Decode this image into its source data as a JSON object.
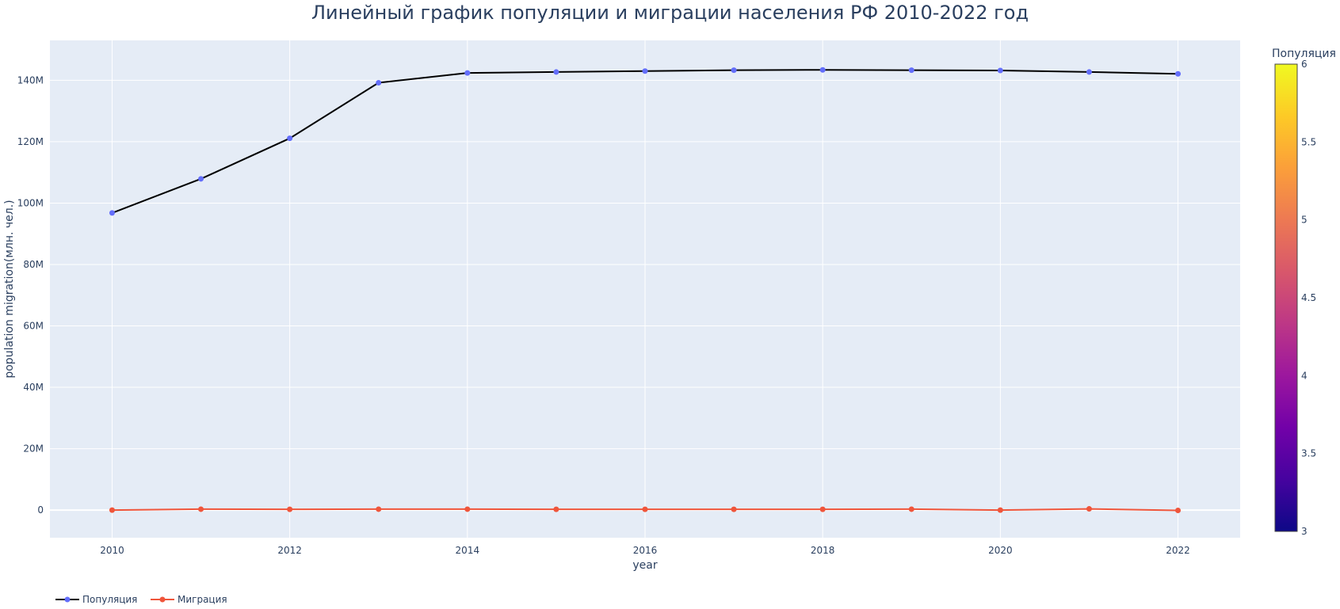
{
  "chart_data": {
    "type": "line",
    "title": "Линейный график популяции и миграции населения РФ 2010-2022 год",
    "xlabel": "year",
    "ylabel": "population migration(млн. чел.)",
    "x": [
      2010,
      2011,
      2012,
      2013,
      2014,
      2015,
      2016,
      2017,
      2018,
      2019,
      2020,
      2021,
      2022
    ],
    "xlim": [
      2009.3,
      2022.7
    ],
    "ylim": [
      -9000000,
      153000000
    ],
    "x_ticks": [
      2010,
      2012,
      2014,
      2016,
      2018,
      2020,
      2022
    ],
    "x_tick_labels": [
      "2010",
      "2012",
      "2014",
      "2016",
      "2018",
      "2020",
      "2022"
    ],
    "y_ticks": [
      0,
      20000000,
      40000000,
      60000000,
      80000000,
      100000000,
      120000000,
      140000000
    ],
    "y_tick_labels": [
      "0",
      "20M",
      "40M",
      "60M",
      "80M",
      "100M",
      "120M",
      "140M"
    ],
    "grid": true,
    "legend_position": "bottom-left",
    "series": [
      {
        "name": "Популяция",
        "line_color": "#000000",
        "marker_color": "#636efa",
        "values": [
          96800000,
          107900000,
          121100000,
          139200000,
          142400000,
          142700000,
          143000000,
          143300000,
          143400000,
          143300000,
          143200000,
          142700000,
          142100000
        ]
      },
      {
        "name": "Миграция",
        "line_color": "#ef553b",
        "marker_color": "#ef553b",
        "values": [
          0,
          300000,
          250000,
          300000,
          300000,
          250000,
          250000,
          250000,
          250000,
          300000,
          0,
          400000,
          -100000
        ]
      }
    ],
    "colorbar": {
      "title": "Популяция",
      "range": [
        3,
        6
      ],
      "ticks": [
        "3",
        "3.5",
        "4",
        "4.5",
        "5",
        "5.5",
        "6"
      ],
      "colorscale": [
        "#0d0887",
        "#46039f",
        "#7201a8",
        "#9c179e",
        "#bd3786",
        "#d8576b",
        "#ed7953",
        "#fb9f3a",
        "#fdca26",
        "#f0f921"
      ]
    },
    "colors": {
      "plot_bg": "#e5ecf6",
      "grid": "#ffffff",
      "text": "#2a3f5f"
    }
  }
}
